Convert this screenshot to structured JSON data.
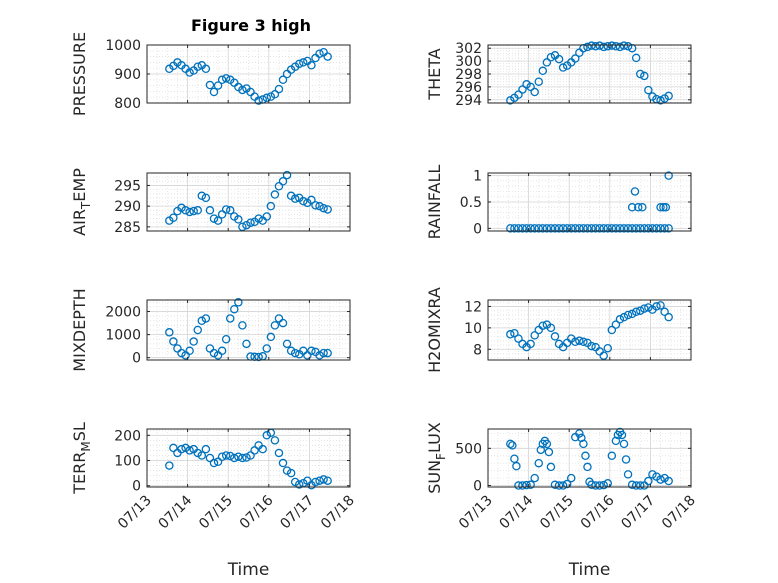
{
  "title": "Figure 3 high",
  "marker_color": "#0072bd",
  "chart_data": [
    {
      "type": "scatter",
      "name": "pressure",
      "ylabel": "PRESSURE",
      "ylabel_sub": "",
      "ylim": [
        800,
        1000
      ],
      "yticks": [
        800,
        900,
        1000
      ],
      "xlim": [
        0,
        5
      ],
      "xticks": [
        0,
        1,
        2,
        3,
        4,
        5
      ],
      "xticklabels": [
        "07/13",
        "07/14",
        "07/15",
        "07/16",
        "07/17",
        "07/18"
      ],
      "show_xticklabels": false,
      "xlabel": "",
      "x": [
        0.55,
        0.65,
        0.75,
        0.85,
        0.95,
        1.05,
        1.15,
        1.25,
        1.35,
        1.45,
        1.55,
        1.65,
        1.75,
        1.85,
        1.95,
        2.05,
        2.15,
        2.25,
        2.35,
        2.45,
        2.55,
        2.65,
        2.75,
        2.85,
        2.95,
        3.05,
        3.15,
        3.25,
        3.35,
        3.45,
        3.55,
        3.65,
        3.75,
        3.85,
        3.95,
        4.05,
        4.15,
        4.25,
        4.35,
        4.45
      ],
      "y": [
        918,
        928,
        940,
        930,
        918,
        905,
        912,
        925,
        930,
        918,
        862,
        838,
        860,
        880,
        885,
        880,
        870,
        855,
        845,
        850,
        838,
        822,
        808,
        812,
        818,
        822,
        830,
        848,
        880,
        900,
        915,
        925,
        935,
        940,
        945,
        930,
        955,
        970,
        975,
        960
      ]
    },
    {
      "type": "scatter",
      "name": "theta",
      "ylabel": "THETA",
      "ylabel_sub": "",
      "ylim": [
        293.5,
        302.5
      ],
      "yticks": [
        294,
        296,
        298,
        300,
        302
      ],
      "xlim": [
        0,
        5
      ],
      "xticks": [
        0,
        1,
        2,
        3,
        4,
        5
      ],
      "xticklabels": [
        "07/13",
        "07/14",
        "07/15",
        "07/16",
        "07/17",
        "07/18"
      ],
      "show_xticklabels": false,
      "xlabel": "",
      "x": [
        0.55,
        0.65,
        0.75,
        0.85,
        0.95,
        1.05,
        1.15,
        1.25,
        1.35,
        1.45,
        1.55,
        1.65,
        1.75,
        1.85,
        1.95,
        2.05,
        2.15,
        2.25,
        2.35,
        2.45,
        2.55,
        2.65,
        2.75,
        2.85,
        2.95,
        3.05,
        3.15,
        3.25,
        3.35,
        3.45,
        3.55,
        3.65,
        3.75,
        3.85,
        3.95,
        4.05,
        4.15,
        4.25,
        4.35,
        4.45
      ],
      "y": [
        293.9,
        294.3,
        294.8,
        295.6,
        296.4,
        296.0,
        295.2,
        296.8,
        298.5,
        299.8,
        300.6,
        300.9,
        300.3,
        299.0,
        299.3,
        299.8,
        300.4,
        301.3,
        302.0,
        302.2,
        302.4,
        302.3,
        302.4,
        302.2,
        302.3,
        302.4,
        302.3,
        302.2,
        302.4,
        302.3,
        302.0,
        300.5,
        298.0,
        297.7,
        295.5,
        294.5,
        294.1,
        293.9,
        294.2,
        294.6
      ]
    },
    {
      "type": "scatter",
      "name": "air-temp",
      "ylabel": "AIR",
      "ylabel_sub": "T",
      "ylabel_rest": "EMP",
      "ylim": [
        284,
        298
      ],
      "yticks": [
        285,
        290,
        295
      ],
      "xlim": [
        0,
        5
      ],
      "xticks": [
        0,
        1,
        2,
        3,
        4,
        5
      ],
      "xticklabels": [
        "07/13",
        "07/14",
        "07/15",
        "07/16",
        "07/17",
        "07/18"
      ],
      "show_xticklabels": false,
      "xlabel": "",
      "x": [
        0.55,
        0.65,
        0.75,
        0.85,
        0.95,
        1.05,
        1.15,
        1.25,
        1.35,
        1.45,
        1.55,
        1.65,
        1.75,
        1.85,
        1.95,
        2.05,
        2.15,
        2.25,
        2.35,
        2.45,
        2.55,
        2.65,
        2.75,
        2.85,
        2.95,
        3.05,
        3.15,
        3.25,
        3.35,
        3.45,
        3.55,
        3.65,
        3.75,
        3.85,
        3.95,
        4.05,
        4.15,
        4.25,
        4.35,
        4.45
      ],
      "y": [
        286.5,
        287.2,
        288.8,
        289.6,
        289.0,
        288.6,
        288.8,
        289.0,
        292.5,
        292.0,
        289.0,
        287.0,
        286.5,
        288.0,
        289.2,
        289.0,
        287.5,
        286.8,
        285.0,
        285.4,
        286.0,
        286.2,
        287.0,
        286.5,
        287.5,
        290.0,
        292.8,
        294.8,
        296.0,
        297.5,
        292.5,
        291.8,
        292.0,
        291.2,
        290.8,
        291.5,
        290.2,
        290.0,
        289.5,
        289.2
      ]
    },
    {
      "type": "scatter",
      "name": "rainfall",
      "ylabel": "RAINFALL",
      "ylabel_sub": "",
      "ylim": [
        -0.05,
        1.05
      ],
      "yticks": [
        0,
        0.5,
        1
      ],
      "xlim": [
        0,
        5
      ],
      "xticks": [
        0,
        1,
        2,
        3,
        4,
        5
      ],
      "xticklabels": [
        "07/13",
        "07/14",
        "07/15",
        "07/16",
        "07/17",
        "07/18"
      ],
      "show_xticklabels": false,
      "xlabel": "",
      "x": [
        0.55,
        0.65,
        0.75,
        0.85,
        0.95,
        1.05,
        1.15,
        1.25,
        1.35,
        1.45,
        1.55,
        1.65,
        1.75,
        1.85,
        1.95,
        2.05,
        2.15,
        2.25,
        2.35,
        2.45,
        2.55,
        2.65,
        2.75,
        2.85,
        2.95,
        3.05,
        3.15,
        3.25,
        3.35,
        3.45,
        3.55,
        3.65,
        3.75,
        3.85,
        3.95,
        4.05,
        4.15,
        4.25,
        4.35,
        4.45,
        3.55,
        3.62,
        3.7,
        3.8,
        4.25,
        4.32,
        4.38,
        4.45
      ],
      "y": [
        0,
        0,
        0,
        0,
        0,
        0,
        0,
        0,
        0,
        0,
        0,
        0,
        0,
        0,
        0,
        0,
        0,
        0,
        0,
        0,
        0,
        0,
        0,
        0,
        0,
        0,
        0,
        0,
        0,
        0,
        0,
        0,
        0,
        0,
        0,
        0,
        0,
        0,
        0,
        0,
        0.4,
        0.7,
        0.4,
        0.4,
        0.4,
        0.4,
        0.4,
        1.0
      ]
    },
    {
      "type": "scatter",
      "name": "mixdepth",
      "ylabel": "MIXDEPTH",
      "ylabel_sub": "",
      "ylim": [
        -100,
        2500
      ],
      "yticks": [
        0,
        1000,
        2000
      ],
      "xlim": [
        0,
        5
      ],
      "xticks": [
        0,
        1,
        2,
        3,
        4,
        5
      ],
      "xticklabels": [
        "07/13",
        "07/14",
        "07/15",
        "07/16",
        "07/17",
        "07/18"
      ],
      "show_xticklabels": false,
      "xlabel": "",
      "x": [
        0.55,
        0.65,
        0.75,
        0.85,
        0.95,
        1.05,
        1.15,
        1.25,
        1.35,
        1.45,
        1.55,
        1.65,
        1.75,
        1.85,
        1.95,
        2.05,
        2.15,
        2.25,
        2.35,
        2.45,
        2.55,
        2.65,
        2.75,
        2.85,
        2.95,
        3.05,
        3.15,
        3.25,
        3.35,
        3.45,
        3.55,
        3.65,
        3.75,
        3.85,
        3.95,
        4.05,
        4.15,
        4.25,
        4.35,
        4.45
      ],
      "y": [
        1100,
        700,
        400,
        200,
        100,
        300,
        700,
        1200,
        1600,
        1700,
        400,
        200,
        100,
        300,
        800,
        1700,
        2100,
        2400,
        1400,
        600,
        50,
        40,
        30,
        60,
        400,
        900,
        1400,
        1700,
        1500,
        600,
        300,
        200,
        150,
        300,
        100,
        300,
        250,
        100,
        200,
        200
      ]
    },
    {
      "type": "scatter",
      "name": "h2omixra",
      "ylabel": "H2OMIXRA",
      "ylabel_sub": "",
      "ylim": [
        7,
        12.6
      ],
      "yticks": [
        8,
        10,
        12
      ],
      "xlim": [
        0,
        5
      ],
      "xticks": [
        0,
        1,
        2,
        3,
        4,
        5
      ],
      "xticklabels": [
        "07/13",
        "07/14",
        "07/15",
        "07/16",
        "07/17",
        "07/18"
      ],
      "show_xticklabels": false,
      "xlabel": "",
      "x": [
        0.55,
        0.65,
        0.75,
        0.85,
        0.95,
        1.05,
        1.15,
        1.25,
        1.35,
        1.45,
        1.55,
        1.65,
        1.75,
        1.85,
        1.95,
        2.05,
        2.15,
        2.25,
        2.35,
        2.45,
        2.55,
        2.65,
        2.75,
        2.85,
        2.95,
        3.05,
        3.15,
        3.25,
        3.35,
        3.45,
        3.55,
        3.65,
        3.75,
        3.85,
        3.95,
        4.05,
        4.15,
        4.25,
        4.35,
        4.45
      ],
      "y": [
        9.4,
        9.5,
        9.0,
        8.5,
        8.2,
        8.5,
        9.3,
        9.8,
        10.2,
        10.3,
        10.0,
        9.2,
        8.5,
        8.2,
        8.6,
        9.0,
        8.7,
        8.8,
        8.7,
        8.6,
        8.3,
        8.2,
        7.8,
        7.4,
        8.1,
        9.8,
        10.3,
        10.8,
        11.0,
        11.2,
        11.3,
        11.5,
        11.6,
        11.8,
        11.9,
        11.7,
        12.0,
        12.1,
        11.5,
        11.0
      ]
    },
    {
      "type": "scatter",
      "name": "terr-msl",
      "ylabel": "TERR",
      "ylabel_sub": "M",
      "ylabel_rest": "SL",
      "ylim": [
        -5,
        225
      ],
      "yticks": [
        0,
        100,
        200
      ],
      "xlim": [
        0,
        5
      ],
      "xticks": [
        0,
        1,
        2,
        3,
        4,
        5
      ],
      "xticklabels": [
        "07/13",
        "07/14",
        "07/15",
        "07/16",
        "07/17",
        "07/18"
      ],
      "show_xticklabels": true,
      "xlabel": "Time",
      "x": [
        0.55,
        0.65,
        0.75,
        0.85,
        0.95,
        1.05,
        1.15,
        1.25,
        1.35,
        1.45,
        1.55,
        1.65,
        1.75,
        1.85,
        1.95,
        2.05,
        2.15,
        2.25,
        2.35,
        2.45,
        2.55,
        2.65,
        2.75,
        2.85,
        2.95,
        3.05,
        3.15,
        3.25,
        3.35,
        3.45,
        3.55,
        3.65,
        3.75,
        3.85,
        3.95,
        4.05,
        4.15,
        4.25,
        4.35,
        4.45
      ],
      "y": [
        80,
        150,
        130,
        145,
        150,
        140,
        145,
        130,
        120,
        145,
        110,
        90,
        95,
        115,
        120,
        118,
        110,
        115,
        110,
        112,
        120,
        140,
        160,
        145,
        200,
        210,
        180,
        130,
        90,
        60,
        50,
        15,
        5,
        10,
        20,
        2,
        15,
        20,
        25,
        20
      ]
    },
    {
      "type": "scatter",
      "name": "sun-flux",
      "ylabel": "SUN",
      "ylabel_sub": "F",
      "ylabel_rest": "LUX",
      "ylim": [
        -20,
        760
      ],
      "yticks": [
        0,
        500
      ],
      "xlim": [
        0,
        5
      ],
      "xticks": [
        0,
        1,
        2,
        3,
        4,
        5
      ],
      "xticklabels": [
        "07/13",
        "07/14",
        "07/15",
        "07/16",
        "07/17",
        "07/18"
      ],
      "show_xticklabels": true,
      "xlabel": "Time",
      "x": [
        0.55,
        0.6,
        0.65,
        0.7,
        0.75,
        0.85,
        0.95,
        1.05,
        1.15,
        1.25,
        1.3,
        1.35,
        1.4,
        1.45,
        1.5,
        1.55,
        1.65,
        1.75,
        1.85,
        1.95,
        2.05,
        2.15,
        2.25,
        2.3,
        2.35,
        2.4,
        2.45,
        2.5,
        2.55,
        2.65,
        2.75,
        2.85,
        2.95,
        3.05,
        3.15,
        3.2,
        3.25,
        3.3,
        3.35,
        3.4,
        3.45,
        3.55,
        3.65,
        3.75,
        3.85,
        3.95,
        4.05,
        4.15,
        4.25,
        4.35,
        4.45
      ],
      "y": [
        560,
        540,
        360,
        260,
        0,
        0,
        5,
        10,
        100,
        300,
        480,
        560,
        600,
        560,
        450,
        250,
        10,
        0,
        0,
        20,
        100,
        650,
        700,
        640,
        560,
        400,
        250,
        50,
        10,
        0,
        0,
        5,
        30,
        400,
        600,
        680,
        720,
        680,
        560,
        350,
        150,
        10,
        0,
        0,
        0,
        60,
        150,
        120,
        80,
        100,
        60
      ]
    }
  ]
}
